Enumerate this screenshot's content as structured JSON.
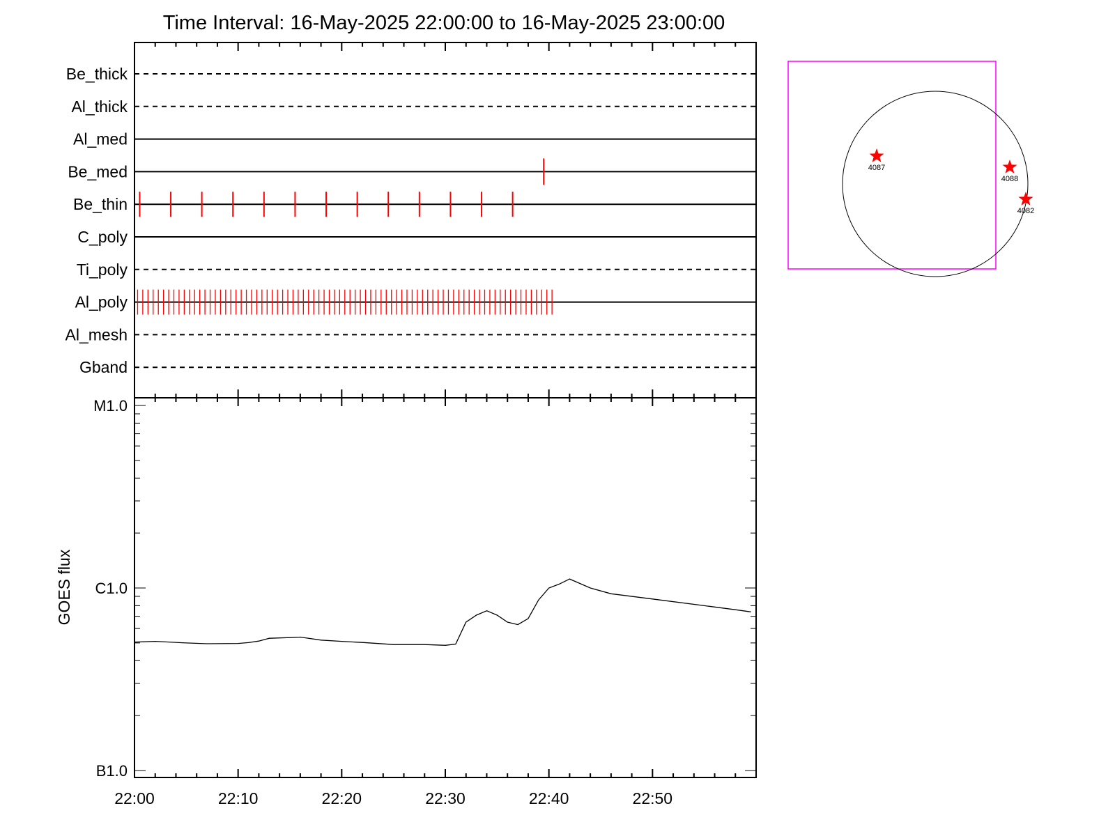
{
  "chart_data": [
    {
      "type": "timeline",
      "title": "Time Interval: 16-May-2025 22:00:00 to 16-May-2025 23:00:00",
      "x_range": [
        "22:00",
        "23:00"
      ],
      "x_ticks": [
        "22:00",
        "22:10",
        "22:20",
        "22:30",
        "22:40",
        "22:50"
      ],
      "rows": [
        {
          "name": "Be_thick",
          "style": "dashed",
          "events": []
        },
        {
          "name": "Al_thick",
          "style": "dashed",
          "events": []
        },
        {
          "name": "Al_med",
          "style": "solid",
          "events": []
        },
        {
          "name": "Be_med",
          "style": "solid",
          "events": [
            "22:39.5"
          ]
        },
        {
          "name": "Be_thin",
          "style": "solid",
          "events": [
            "22:00.5",
            "22:03.5",
            "22:06.5",
            "22:09.5",
            "22:12.5",
            "22:15.5",
            "22:18.5",
            "22:21.5",
            "22:24.5",
            "22:27.5",
            "22:30.5",
            "22:33.5",
            "22:36.5"
          ]
        },
        {
          "name": "C_poly",
          "style": "solid",
          "events": []
        },
        {
          "name": "Ti_poly",
          "style": "dashed",
          "events": []
        },
        {
          "name": "Al_poly",
          "style": "solid",
          "event_span": [
            "22:00.3",
            "22:40.7"
          ],
          "event_interval_min": 0.5,
          "major_interval_min": 3
        },
        {
          "name": "Al_mesh",
          "style": "dashed",
          "events": []
        },
        {
          "name": "Gband",
          "style": "dashed",
          "events": []
        }
      ],
      "event_color": "#ff0000"
    },
    {
      "type": "line",
      "ylabel": "GOES flux",
      "y_scale": "log",
      "ylim": [
        "1e-7",
        "1e-5"
      ],
      "y_ticks": [
        {
          "label": "B1.0",
          "value": "1e-7"
        },
        {
          "label": "C1.0",
          "value": "1e-6"
        },
        {
          "label": "M1.0",
          "value": "1e-5"
        }
      ],
      "x_ticks": [
        "22:00",
        "22:10",
        "22:20",
        "22:30",
        "22:40",
        "22:50"
      ],
      "series": [
        {
          "x": [
            "22:00",
            "22:02",
            "22:05",
            "22:07",
            "22:10",
            "22:11",
            "22:12",
            "22:13",
            "22:15",
            "22:16",
            "22:18",
            "22:20",
            "22:22",
            "22:25",
            "22:28",
            "22:30",
            "22:31",
            "22:32",
            "22:33",
            "22:34",
            "22:35",
            "22:36",
            "22:37",
            "22:38",
            "22:39",
            "22:40",
            "22:41",
            "22:42",
            "22:44",
            "22:46",
            "22:50",
            "22:55",
            "22:58",
            "22:59.5"
          ],
          "y": [
            "5.05e-7",
            "5.1e-7",
            "5.0e-7",
            "4.95e-7",
            "4.97e-7",
            "5.02e-7",
            "5.12e-7",
            "5.3e-7",
            "5.35e-7",
            "5.38e-7",
            "5.18e-7",
            "5.1e-7",
            "5.03e-7",
            "4.9e-7",
            "4.9e-7",
            "4.85e-7",
            "4.93e-7",
            "6.5e-7",
            "7.1e-7",
            "7.5e-7",
            "7.1e-7",
            "6.5e-7",
            "6.3e-7",
            "6.8e-7",
            "8.6e-7",
            "1.0e-6",
            "1.05e-6",
            "1.12e-6",
            "1.0e-6",
            "9.3e-7",
            "8.7e-7",
            "8.0e-7",
            "7.6e-7",
            "7.4e-7"
          ]
        }
      ]
    },
    {
      "type": "scatter",
      "subtype": "solar_disk_map",
      "points": [
        {
          "label": "4087"
        },
        {
          "label": "4088"
        },
        {
          "label": "4082"
        }
      ],
      "fov_color": "#ff00ff",
      "marker_color": "#ff0000"
    }
  ]
}
